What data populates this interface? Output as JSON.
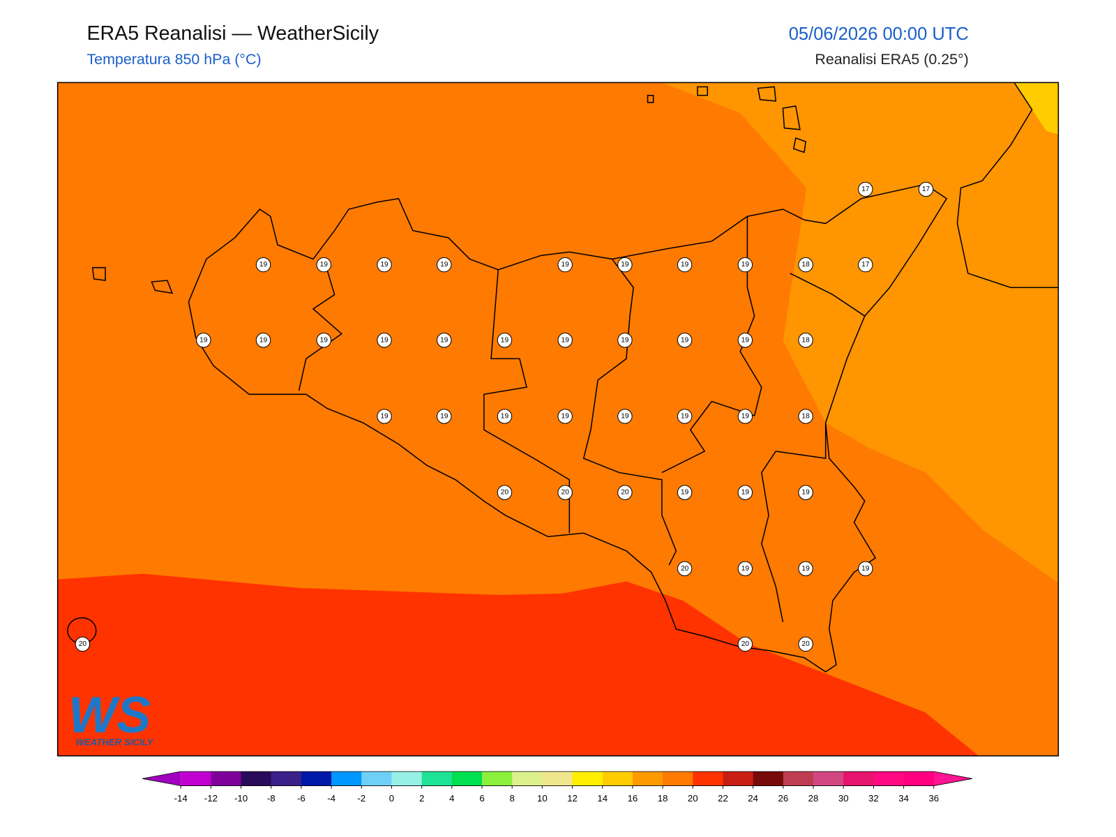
{
  "header": {
    "title": "ERA5 Reanalisi — WeatherSicily",
    "subtitle": "Temperatura 850 hPa (°C)",
    "datetime": "05/06/2026 00:00 UTC",
    "source": "Reanalisi ERA5 (0.25°)"
  },
  "stations": [
    17,
    17,
    19,
    19,
    19,
    19,
    19,
    19,
    19,
    19,
    18,
    17,
    19,
    19,
    19,
    19,
    19,
    19,
    19,
    19,
    19,
    19,
    18,
    19,
    19,
    19,
    19,
    19,
    19,
    19,
    18,
    20,
    20,
    20,
    19,
    19,
    19,
    20,
    19,
    19,
    19,
    20,
    20,
    20
  ],
  "logo": {
    "mark": "WS",
    "text": "WEATHER SICILY"
  },
  "colorbar": {
    "ticks": [
      -14,
      -12,
      -10,
      -8,
      -6,
      -4,
      -2,
      0,
      2,
      4,
      6,
      8,
      10,
      12,
      14,
      16,
      18,
      20,
      22,
      24,
      26,
      28,
      30,
      32,
      34,
      36
    ],
    "under": "#a000c0",
    "colors": [
      "#c000d0",
      "#80009a",
      "#2a0a5a",
      "#3a2088",
      "#0018a8",
      "#0096ff",
      "#6ed0f6",
      "#96f0e6",
      "#1ee296",
      "#00e050",
      "#8af03c",
      "#dcf08c",
      "#f0e68c",
      "#ffee00",
      "#ffcc00",
      "#ff9900",
      "#ff7a00",
      "#ff3300",
      "#c81e14",
      "#780a0a",
      "#c03c50",
      "#d24682",
      "#e6146e",
      "#ff0a82",
      "#ff0080"
    ],
    "over": "#ff1493"
  }
}
